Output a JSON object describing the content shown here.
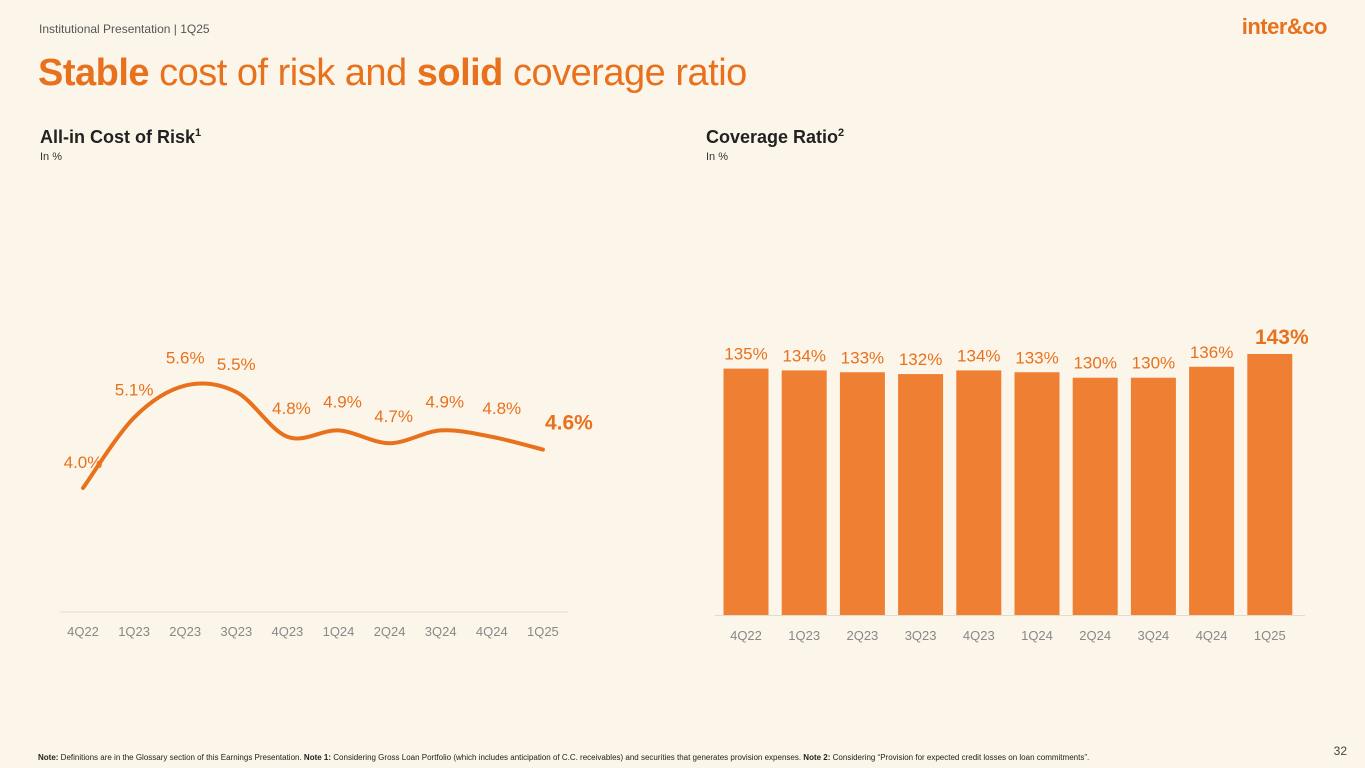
{
  "header": {
    "label": "Institutional Presentation | 1Q25",
    "logo": "inter&co"
  },
  "title": {
    "part1": "Stable",
    "part2": " cost of risk and ",
    "part3": "solid",
    "part4": " coverage ratio"
  },
  "colors": {
    "accent": "#E8711E",
    "bar": "#EE7F33",
    "axis": "#888888",
    "background": "#FCF6EA"
  },
  "chart_data": [
    {
      "type": "line",
      "title": "All-in Cost of Risk",
      "title_sup": "1",
      "subtitle": "In %",
      "categories": [
        "4Q22",
        "1Q23",
        "2Q23",
        "3Q23",
        "4Q23",
        "1Q24",
        "2Q24",
        "3Q24",
        "4Q24",
        "1Q25"
      ],
      "values": [
        4.0,
        5.1,
        5.6,
        5.5,
        4.8,
        4.9,
        4.7,
        4.9,
        4.8,
        4.6
      ],
      "labels": [
        "4.0%",
        "5.1%",
        "5.6%",
        "5.5%",
        "4.8%",
        "4.9%",
        "4.7%",
        "4.9%",
        "4.8%",
        "4.6%"
      ],
      "ylim": [
        0,
        7
      ]
    },
    {
      "type": "bar",
      "title": "Coverage Ratio",
      "title_sup": "2",
      "subtitle": "In %",
      "categories": [
        "4Q22",
        "1Q23",
        "2Q23",
        "3Q23",
        "4Q23",
        "1Q24",
        "2Q24",
        "3Q24",
        "4Q24",
        "1Q25"
      ],
      "values": [
        135,
        134,
        133,
        132,
        134,
        133,
        130,
        130,
        136,
        143
      ],
      "labels": [
        "135%",
        "134%",
        "133%",
        "132%",
        "134%",
        "133%",
        "130%",
        "130%",
        "136%",
        "143%"
      ],
      "ylim": [
        0,
        143
      ]
    }
  ],
  "footer": {
    "note_label": "Note:",
    "note_text": " Definitions are in the Glossary section of this Earnings Presentation. ",
    "note1_label": "Note 1:",
    "note1_text": " Considering Gross Loan Portfolio (which includes anticipation of C.C. receivables) and securities that generates provision expenses. ",
    "note2_label": "Note 2:",
    "note2_text": " Considering “Provision for expected credit losses on loan commitments”.",
    "page_number": "32"
  }
}
